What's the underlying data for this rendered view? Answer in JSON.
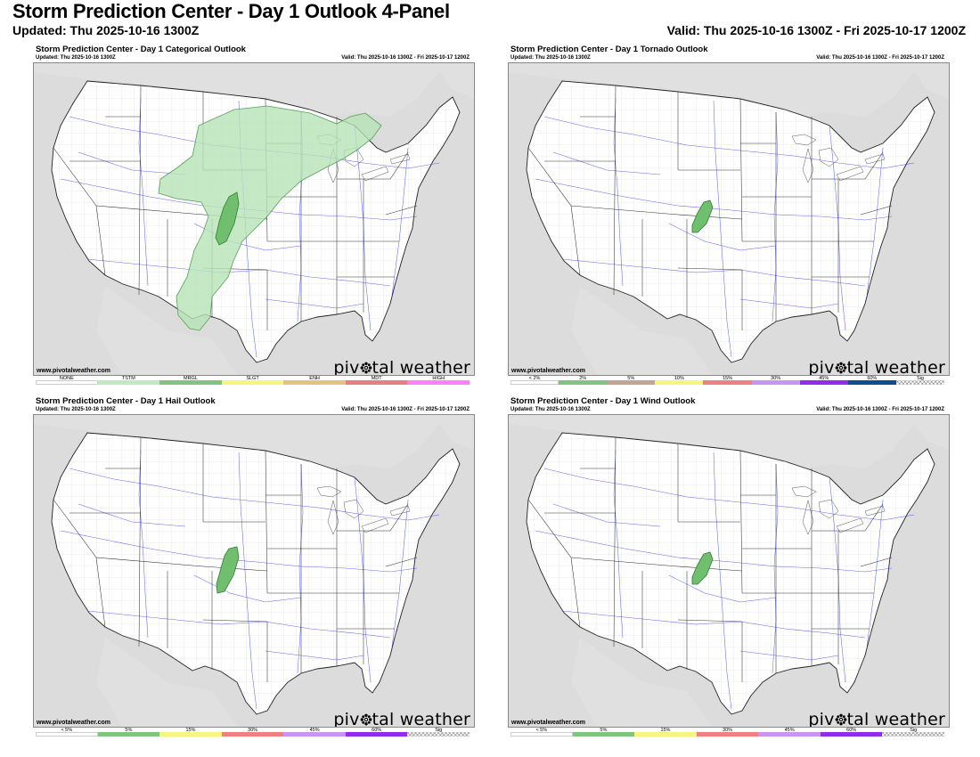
{
  "header": {
    "title": "Storm Prediction Center - Day 1 Outlook 4-Panel",
    "updated": "Updated: Thu 2025-10-16 1300Z",
    "valid": "Valid: Thu 2025-10-16 1300Z - Fri 2025-10-17 1200Z"
  },
  "panels": [
    {
      "title": "Storm Prediction Center - Day 1 Categorical Outlook",
      "updated": "Updated: Thu 2025-10-16 1300Z",
      "valid": "Valid: Thu 2025-10-16 1300Z - Fri 2025-10-17 1200Z",
      "site": "www.pivotalweather.com",
      "brand_left": "piv",
      "brand_right": "tal weather",
      "legend": [
        {
          "label": "NONE",
          "color": "#ffffff"
        },
        {
          "label": "TSTM",
          "color": "#c1e9c1"
        },
        {
          "label": "MRGL",
          "color": "#7fc57f"
        },
        {
          "label": "SLGT",
          "color": "#f6f67f"
        },
        {
          "label": "ENH",
          "color": "#e6c27f"
        },
        {
          "label": "MDT",
          "color": "#e67f7f"
        },
        {
          "label": "HIGH",
          "color": "#ff7fff"
        }
      ]
    },
    {
      "title": "Storm Prediction Center - Day 1 Tornado Outlook",
      "updated": "Updated: Thu 2025-10-16 1300Z",
      "valid": "Valid: Thu 2025-10-16 1300Z - Fri 2025-10-17 1200Z",
      "site": "www.pivotalweather.com",
      "brand_left": "piv",
      "brand_right": "tal weather",
      "legend": [
        {
          "label": "< 2%",
          "color": "#ffffff"
        },
        {
          "label": "2%",
          "color": "#7fc57f"
        },
        {
          "label": "5%",
          "color": "#c5a393"
        },
        {
          "label": "10%",
          "color": "#f6f67f"
        },
        {
          "label": "15%",
          "color": "#f08080"
        },
        {
          "label": "30%",
          "color": "#c896f0"
        },
        {
          "label": "45%",
          "color": "#912cee"
        },
        {
          "label": "60%",
          "color": "#104e8b"
        },
        {
          "label": "Sig",
          "color": "hatch"
        }
      ]
    },
    {
      "title": "Storm Prediction Center - Day 1 Hail Outlook",
      "updated": "Updated: Thu 2025-10-16 1300Z",
      "valid": "Valid: Thu 2025-10-16 1300Z - Fri 2025-10-17 1200Z",
      "site": "www.pivotalweather.com",
      "brand_left": "piv",
      "brand_right": "tal weather",
      "legend": [
        {
          "label": "< 5%",
          "color": "#ffffff"
        },
        {
          "label": "5%",
          "color": "#7fc57f"
        },
        {
          "label": "15%",
          "color": "#f6f67f"
        },
        {
          "label": "30%",
          "color": "#f08080"
        },
        {
          "label": "45%",
          "color": "#c896f0"
        },
        {
          "label": "60%",
          "color": "#912cee"
        },
        {
          "label": "Sig",
          "color": "hatch"
        }
      ]
    },
    {
      "title": "Storm Prediction Center - Day 1 Wind Outlook",
      "updated": "Updated: Thu 2025-10-16 1300Z",
      "valid": "Valid: Thu 2025-10-16 1300Z - Fri 2025-10-17 1200Z",
      "site": "www.pivotalweather.com",
      "brand_left": "piv",
      "brand_right": "tal weather",
      "legend": [
        {
          "label": "< 5%",
          "color": "#ffffff"
        },
        {
          "label": "5%",
          "color": "#7fc57f"
        },
        {
          "label": "15%",
          "color": "#f6f67f"
        },
        {
          "label": "30%",
          "color": "#f08080"
        },
        {
          "label": "45%",
          "color": "#c896f0"
        },
        {
          "label": "60%",
          "color": "#912cee"
        },
        {
          "label": "Sig",
          "color": "hatch"
        }
      ]
    }
  ],
  "colors": {
    "land": "#ffffff",
    "outside": "#dcdcdc",
    "state_border": "#333333",
    "county_border": "#b5b5b5",
    "highways": "#4a4aff",
    "tstm_fill": "#c1e9c1",
    "risk_fill": "#6fbf6f",
    "risk_edge": "#2e7d32"
  }
}
